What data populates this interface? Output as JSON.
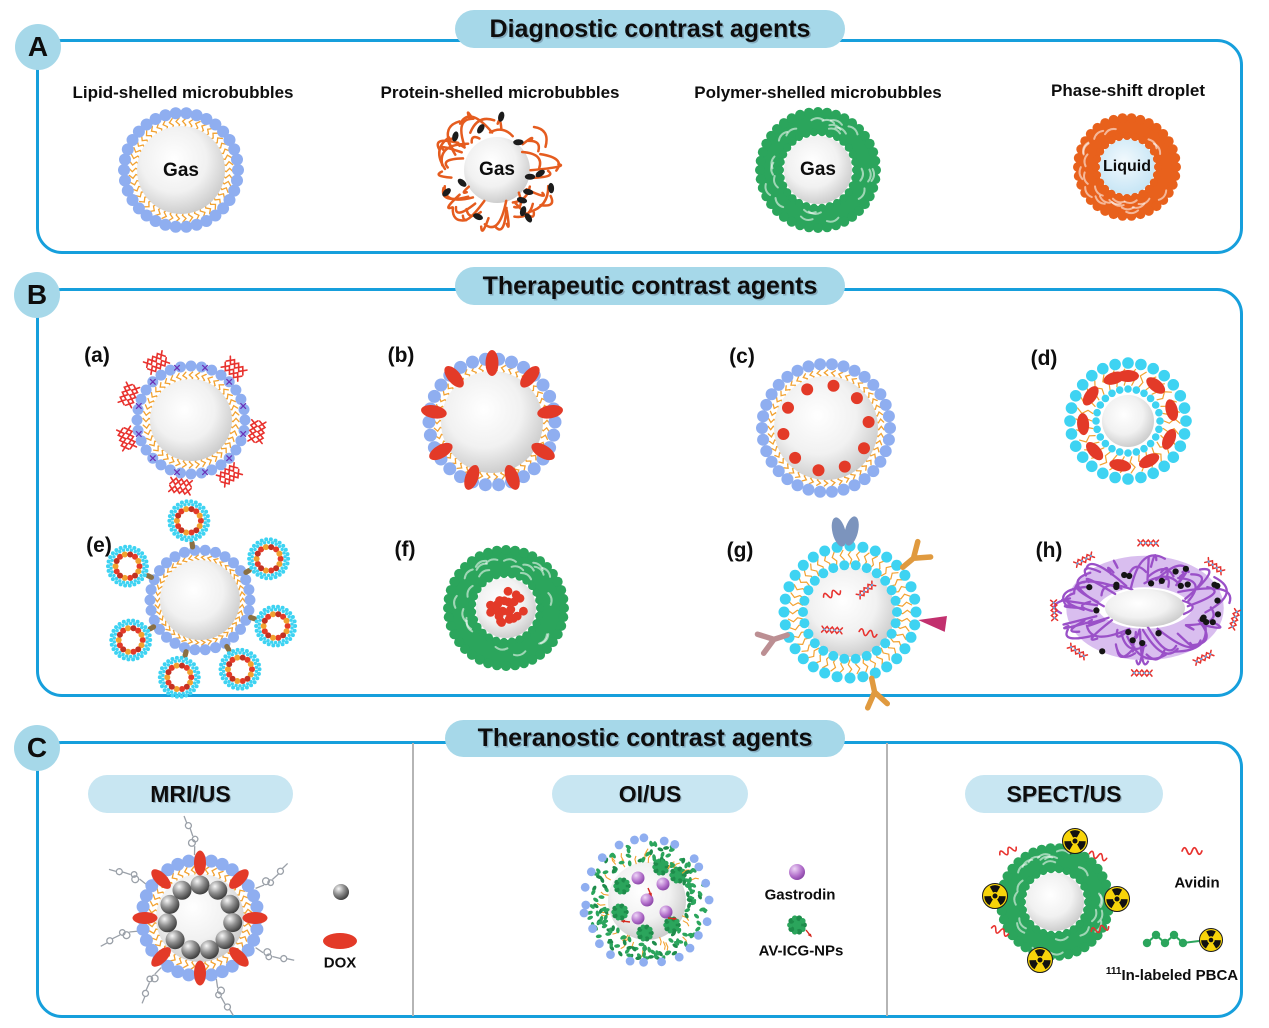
{
  "figure": {
    "background": "#ffffff"
  },
  "colors": {
    "panel_border": "#169FDC",
    "accent_light_blue": "#A6D8E9",
    "sub_pill_blue": "#C8E6F2",
    "lipid_dot_blue": "#8FAEF0",
    "tail_orange": "#F2A231",
    "protein_orange": "#E55C1F",
    "polymer_green": "#2BA55C",
    "polymer_green_dark": "#1E8C4B",
    "droplet_orange": "#E8611C",
    "drug_red": "#E33A28",
    "dna_red": "#E8322E",
    "cyan_dot": "#3ED3F2",
    "purple_shell": "#9A50C8",
    "sparkle_purple": "#6B34B8",
    "linker_brown": "#8A7044",
    "linker_magenta": "#D43C96",
    "antibody_orange": "#E09A3F",
    "antibody_mauve": "#BC8F93",
    "antibody_magenta": "#C2306E",
    "protein_dimer_blue": "#7C94BD",
    "chain_gray": "#9AA0A8",
    "divider_gray": "#B5B5B5",
    "radiation_yellow": "#F7D40A",
    "spot_black": "#1C1C1C",
    "core_gray_edge": "#C6C6C6",
    "liquid_blue": "#C4E3F6"
  },
  "panels": {
    "a": {
      "badge": "A",
      "title": "Diagnostic contrast agents",
      "items": [
        {
          "label": "Lipid-shelled microbubbles",
          "core_label": "Gas",
          "graphic": "lipid-shelled-microbubble"
        },
        {
          "label": "Protein-shelled microbubbles",
          "core_label": "Gas",
          "graphic": "protein-shelled-microbubble"
        },
        {
          "label": "Polymer-shelled microbubbles",
          "core_label": "Gas",
          "graphic": "polymer-shelled-microbubble"
        },
        {
          "label": "Phase-shift droplet",
          "core_label": "Liquid",
          "graphic": "phase-shift-droplet"
        }
      ]
    },
    "b": {
      "badge": "B",
      "title": "Therapeutic contrast agents",
      "items": [
        {
          "label": "(a)",
          "graphic": "microbubble-with-surface-nucleic-acids"
        },
        {
          "label": "(b)",
          "graphic": "microbubble-with-drug-in-shell"
        },
        {
          "label": "(c)",
          "graphic": "microbubble-with-drug-inside-core"
        },
        {
          "label": "(d)",
          "graphic": "double-layer-microbubble-with-drug"
        },
        {
          "label": "(e)",
          "graphic": "microbubble-with-attached-liposomes"
        },
        {
          "label": "(f)",
          "graphic": "polymer-microbubble-with-drug-core"
        },
        {
          "label": "(g)",
          "graphic": "targeted-microbubble-with-antibodies-and-genes"
        },
        {
          "label": "(h)",
          "graphic": "protein-torus-with-nucleic-acids"
        }
      ]
    },
    "c": {
      "badge": "C",
      "title": "Theranostic contrast agents",
      "sections": [
        {
          "title": "MRI/US",
          "graphic": "microbubble-with-iron-oxide-and-dox",
          "legend": [
            {
              "label": "",
              "icon": "iron-oxide-nanoparticle-icon"
            },
            {
              "label": "DOX",
              "icon": "dox-drug-icon"
            }
          ]
        },
        {
          "title": "OI/US",
          "graphic": "microbubble-with-gastrodin-and-icg-nanoparticles",
          "legend": [
            {
              "label": "Gastrodin",
              "icon": "gastrodin-sphere-icon"
            },
            {
              "label": "AV-ICG-NPs",
              "icon": "av-icg-nanoparticle-icon"
            }
          ]
        },
        {
          "title": "SPECT/US",
          "graphic": "radiolabeled-polymer-microbubble",
          "legend": [
            {
              "label": "Avidin",
              "icon": "avidin-squiggle-icon"
            },
            {
              "sup": "111",
              "label": "In-labeled PBCA",
              "icon": "in111-labeled-pbca-icon"
            }
          ]
        }
      ]
    }
  }
}
